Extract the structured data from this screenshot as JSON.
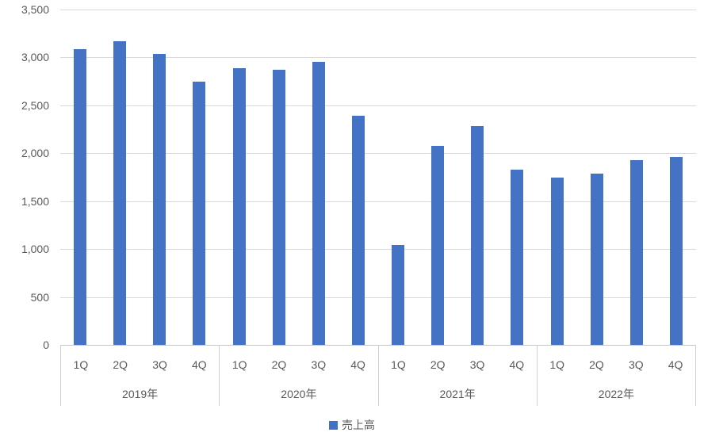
{
  "chart_data": {
    "type": "bar",
    "title": "",
    "legend": {
      "label": "売上高",
      "position": "bottom"
    },
    "grid": true,
    "y_axis": {
      "min": 0,
      "max": 3500,
      "step": 500,
      "tick_labels_top_to_bottom": [
        "3,500",
        "3,000",
        "2,500",
        "2,000",
        "1,500",
        "1,000",
        "500",
        "0"
      ]
    },
    "x_axis": {
      "quarter_labels": [
        "1Q",
        "2Q",
        "3Q",
        "4Q"
      ],
      "year_labels": [
        "2019年",
        "2020年",
        "2021年",
        "2022年"
      ]
    },
    "groups": [
      {
        "year": "2019年",
        "values": [
          3090,
          3170,
          3040,
          2750
        ]
      },
      {
        "year": "2020年",
        "values": [
          2890,
          2870,
          2950,
          2390
        ]
      },
      {
        "year": "2021年",
        "values": [
          1040,
          2080,
          2280,
          1830
        ]
      },
      {
        "year": "2022年",
        "values": [
          1750,
          1790,
          1930,
          1960
        ]
      }
    ],
    "colors": {
      "bar": "#4472C4",
      "gridline": "#D9D9D9",
      "axis_line": "#C6C6C6",
      "separator": "#D0D0D0",
      "text": "#595959"
    }
  }
}
